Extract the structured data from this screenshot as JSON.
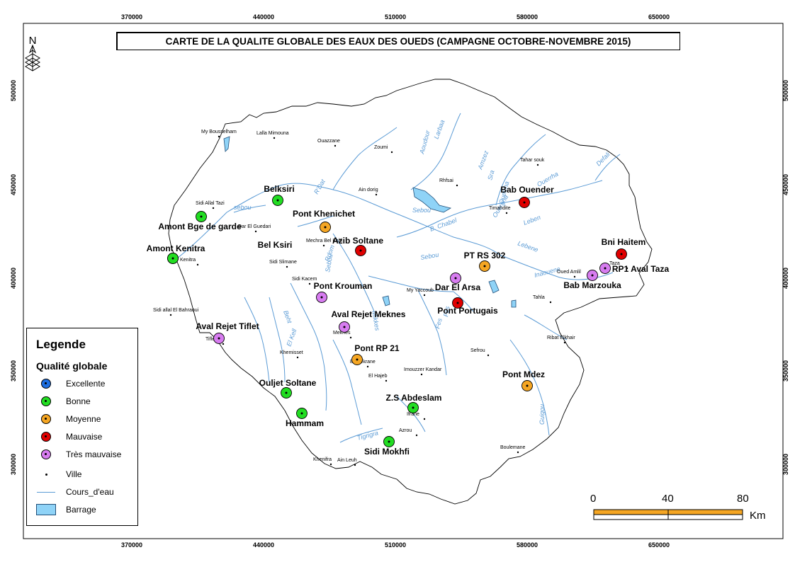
{
  "title": "CARTE DE LA QUALITE GLOBALE DES EAUX DES OUEDS (CAMPAGNE OCTOBRE-NOVEMBRE 2015)",
  "north_label": "N",
  "axis": {
    "x_ticks": [
      "370000",
      "440000",
      "510000",
      "580000",
      "650000"
    ],
    "y_ticks": [
      "500000",
      "450000",
      "400000",
      "350000",
      "300000"
    ]
  },
  "colors": {
    "excellente": "#1f6fe0",
    "bonne": "#22dd22",
    "moyenne": "#f5a623",
    "mauvaise": "#e00000",
    "tres_mauvaise": "#d77cf0",
    "river": "#5b9bd5",
    "barrage": "#8fd3f7"
  },
  "legend": {
    "title": "Legende",
    "subtitle": "Qualité globale",
    "items": [
      {
        "key": "excellente",
        "label": "Excellente"
      },
      {
        "key": "bonne",
        "label": "Bonne"
      },
      {
        "key": "moyenne",
        "label": "Moyenne"
      },
      {
        "key": "mauvaise",
        "label": "Mauvaise"
      },
      {
        "key": "tres_mauvaise",
        "label": "Très mauvaise"
      }
    ],
    "ville_label": "Ville",
    "river_label": "Cours_d'eau",
    "barrage_label": "Barrage"
  },
  "scale": {
    "labels": [
      "0",
      "40",
      "80"
    ],
    "unit": "Km"
  },
  "stations": [
    {
      "name": "Belksiri",
      "quality": "bonne"
    },
    {
      "name": "Amont Bge de garde",
      "quality": "bonne"
    },
    {
      "name": "Pont Khenichet",
      "quality": "moyenne"
    },
    {
      "name": "Azib Soltane",
      "quality": "mauvaise"
    },
    {
      "name": "Bel Ksiri",
      "quality": "bonne"
    },
    {
      "name": "Amont Kenitra",
      "quality": "bonne"
    },
    {
      "name": "Bab Ouender",
      "quality": "mauvaise"
    },
    {
      "name": "PT RS 302",
      "quality": "moyenne"
    },
    {
      "name": "Bni Haitem",
      "quality": "mauvaise"
    },
    {
      "name": "RP1 Aval Taza",
      "quality": "tres_mauvaise"
    },
    {
      "name": "Bab Marzouka",
      "quality": "tres_mauvaise"
    },
    {
      "name": "Dar El Arsa",
      "quality": "tres_mauvaise"
    },
    {
      "name": "Pont Portugais",
      "quality": "mauvaise"
    },
    {
      "name": "Pont Krouman",
      "quality": "tres_mauvaise"
    },
    {
      "name": "Aval Rejet Meknes",
      "quality": "tres_mauvaise"
    },
    {
      "name": "Aval Rejet Tiflet",
      "quality": "tres_mauvaise"
    },
    {
      "name": "Pont RP 21",
      "quality": "moyenne"
    },
    {
      "name": "Pont Mdez",
      "quality": "moyenne"
    },
    {
      "name": "Ouljet Soltane",
      "quality": "bonne"
    },
    {
      "name": "Hammam",
      "quality": "bonne"
    },
    {
      "name": "Z.S Abdeslam",
      "quality": "bonne"
    },
    {
      "name": "Sidi Mokhfi",
      "quality": "bonne"
    }
  ],
  "towns": [
    "My Bousselham",
    "Lalla Mimouna",
    "Ouazzane",
    "Zoumi",
    "Tahar souk",
    "Rhfsai",
    "Ain dorig",
    "Sidi Allal Tazi",
    "Dar El Guedari",
    "Kenitra",
    "Mechra Bel Ksiri",
    "Sidi Slimane",
    "Sidi Kacem",
    "Sidi allal El Bahraoui",
    "Tiflet",
    "Khemisset",
    "Meknes",
    "Boufekrane",
    "El Hajeb",
    "Imouzzer Kandar",
    "Sefrou",
    "My Yaccoub",
    "Ifrane",
    "Azrou",
    "Khenifra",
    "Ain Leuh",
    "Boulemane",
    "Ribat Elkhair",
    "Oued Amlil",
    "Tahla",
    "Taza",
    "Timahdite"
  ],
  "rivers": [
    "sebou",
    "R'Dat",
    "B. Chabel",
    "Lebene",
    "Inaouene",
    "Sebou",
    "Larbaa",
    "Aoudour",
    "Amzez",
    "Sra",
    "Ouerrha",
    "Sebou",
    "Mikkes",
    "Fes",
    "Beht",
    "Tigrigra",
    "Guigou",
    "Sebou",
    "Ouergha",
    "Leben",
    "Defali",
    "El Kell",
    "Rdom",
    "Fes",
    "Ouerrha"
  ]
}
